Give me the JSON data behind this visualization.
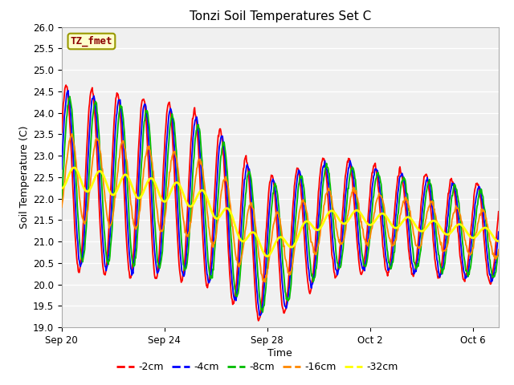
{
  "title": "Tonzi Soil Temperatures Set C",
  "xlabel": "Time",
  "ylabel": "Soil Temperature (C)",
  "ylim": [
    19.0,
    26.0
  ],
  "yticks": [
    19.0,
    19.5,
    20.0,
    20.5,
    21.0,
    21.5,
    22.0,
    22.5,
    23.0,
    23.5,
    24.0,
    24.5,
    25.0,
    25.5,
    26.0
  ],
  "xtick_labels": [
    "Sep 20",
    "Sep 24",
    "Sep 28",
    "Oct 2",
    "Oct 6"
  ],
  "xtick_positions": [
    0,
    4,
    8,
    12,
    16
  ],
  "annotation_text": "TZ_fmet",
  "annotation_fg": "#8b0000",
  "annotation_bg": "#ffffcc",
  "annotation_border": "#999900",
  "line_colors": [
    "#ff0000",
    "#0000ff",
    "#00bb00",
    "#ff8800",
    "#ffff00"
  ],
  "line_labels": [
    "-2cm",
    "-4cm",
    "-8cm",
    "-16cm",
    "-32cm"
  ],
  "line_widths": [
    1.3,
    1.3,
    1.3,
    1.3,
    2.0
  ],
  "fig_bg": "#ffffff",
  "plot_bg": "#f0f0f0",
  "grid_color": "#ffffff",
  "n_days": 17
}
